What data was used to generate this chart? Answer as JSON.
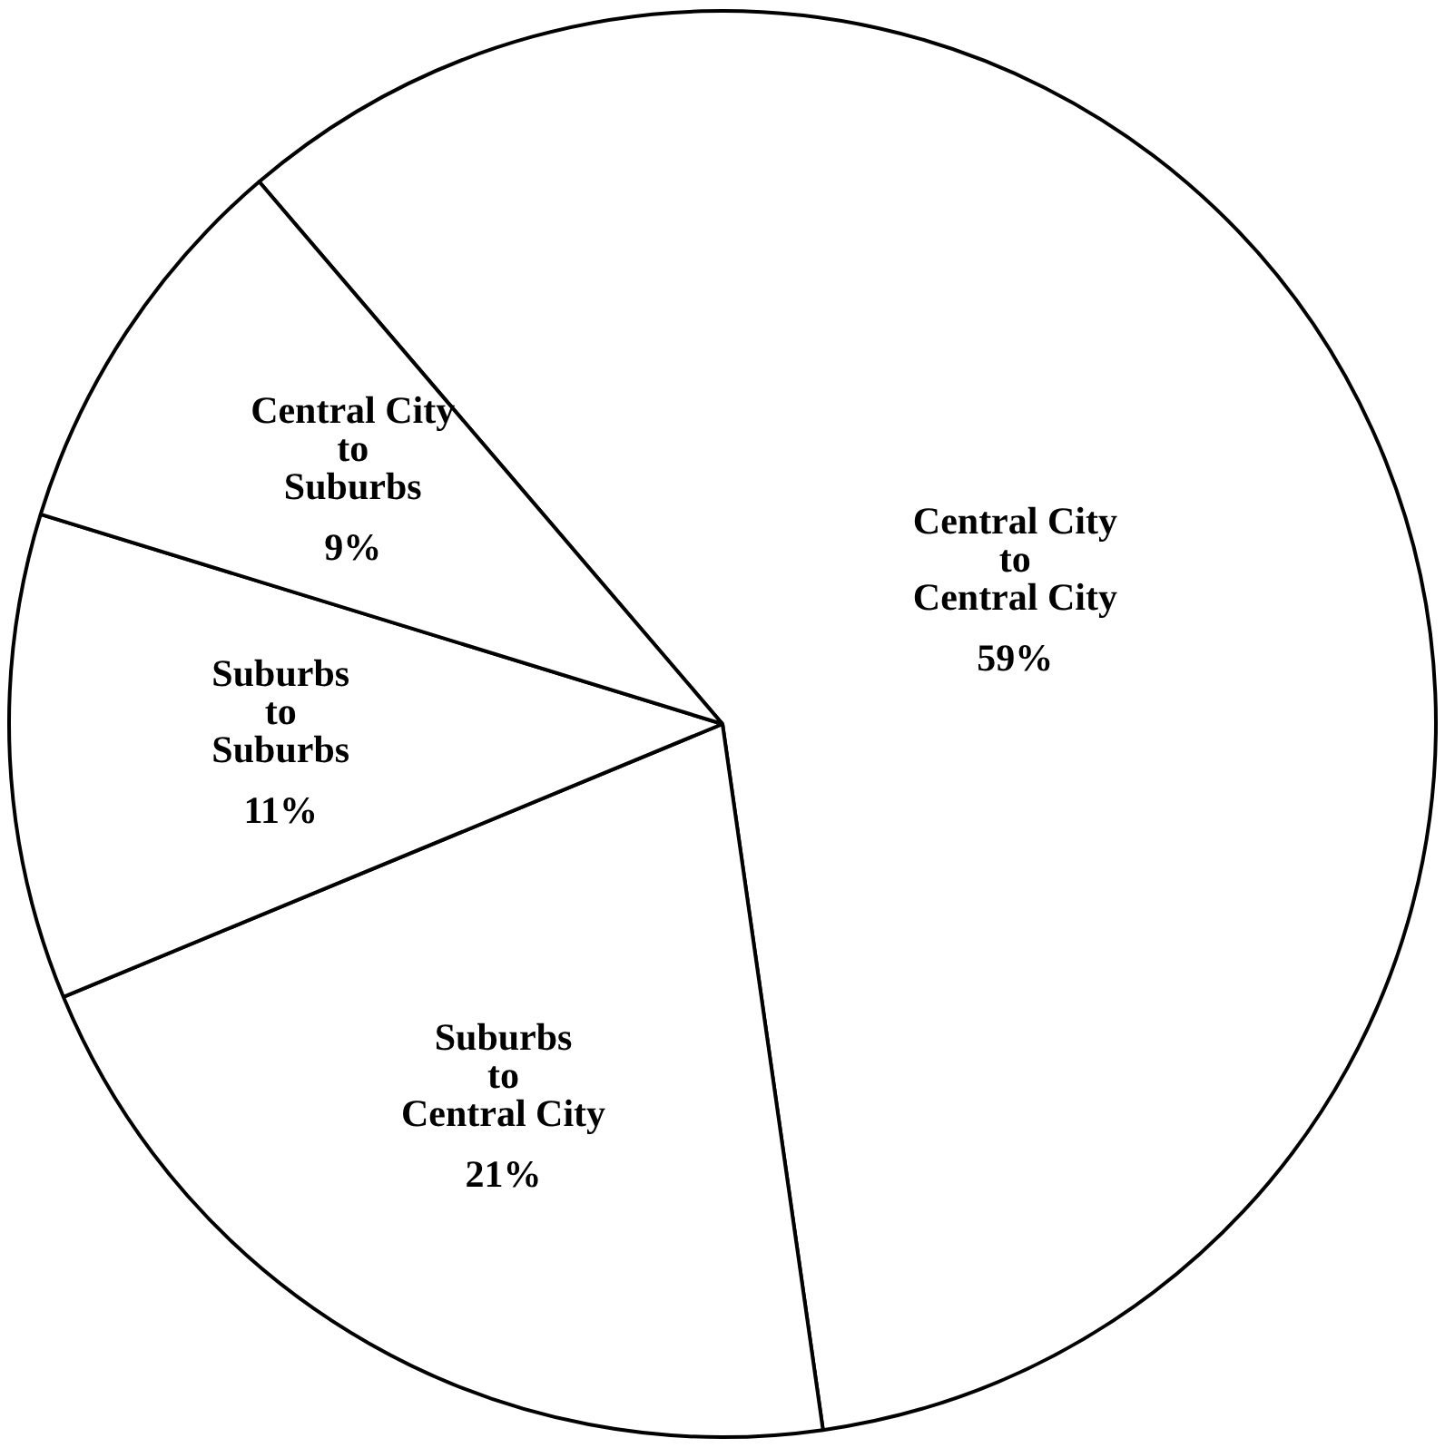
{
  "chart_data": {
    "type": "pie",
    "categories": [
      "Central City\nto\nCentral City",
      "Suburbs\nto\nCentral City",
      "Suburbs\nto\nSuburbs",
      "Central City\nto\nSuburbs"
    ],
    "values": [
      59,
      21,
      11,
      9
    ],
    "value_labels": [
      "59%",
      "21%",
      "11%",
      "9%"
    ],
    "colors": [
      "#ffffff",
      "#ffffff",
      "#ffffff",
      "#ffffff"
    ],
    "legend": false
  }
}
